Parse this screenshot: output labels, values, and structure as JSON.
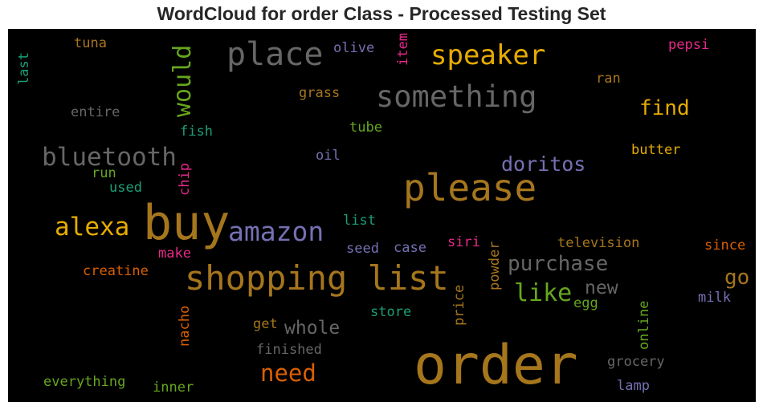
{
  "title": "WordCloud for order Class - Processed Testing Set",
  "words": {
    "order": {
      "text": "order",
      "color": "#a6761d"
    },
    "buy": {
      "text": "buy",
      "color": "#a6761d"
    },
    "please": {
      "text": "please",
      "color": "#a6761d"
    },
    "shopping_list": {
      "text": "shopping list",
      "color": "#a6761d"
    },
    "place": {
      "text": "place",
      "color": "#666666"
    },
    "something": {
      "text": "something",
      "color": "#666666"
    },
    "speaker": {
      "text": "speaker",
      "color": "#e6ab02"
    },
    "bluetooth": {
      "text": "bluetooth",
      "color": "#666666"
    },
    "amazon": {
      "text": "amazon",
      "color": "#7570b3"
    },
    "alexa": {
      "text": "alexa",
      "color": "#e6ab02"
    },
    "need": {
      "text": "need",
      "color": "#d95f02"
    },
    "would": {
      "text": "would",
      "color": "#66a61e"
    },
    "find": {
      "text": "find",
      "color": "#e6ab02"
    },
    "doritos": {
      "text": "doritos",
      "color": "#7570b3"
    },
    "purchase": {
      "text": "purchase",
      "color": "#666666"
    },
    "like": {
      "text": "like",
      "color": "#66a61e"
    },
    "new": {
      "text": "new",
      "color": "#666666"
    },
    "go": {
      "text": "go",
      "color": "#a6761d"
    },
    "whole": {
      "text": "whole",
      "color": "#666666"
    },
    "tuna": {
      "text": "tuna",
      "color": "#a6761d"
    },
    "last": {
      "text": "last",
      "color": "#1b9e77"
    },
    "olive": {
      "text": "olive",
      "color": "#7570b3"
    },
    "item": {
      "text": "item",
      "color": "#e7298a"
    },
    "pepsi": {
      "text": "pepsi",
      "color": "#e7298a"
    },
    "ran": {
      "text": "ran",
      "color": "#a6761d"
    },
    "grass": {
      "text": "grass",
      "color": "#a6761d"
    },
    "entire": {
      "text": "entire",
      "color": "#666666"
    },
    "fish": {
      "text": "fish",
      "color": "#1b9e77"
    },
    "tube": {
      "text": "tube",
      "color": "#66a61e"
    },
    "oil": {
      "text": "oil",
      "color": "#7570b3"
    },
    "butter": {
      "text": "butter",
      "color": "#e6ab02"
    },
    "run": {
      "text": "run",
      "color": "#66a61e"
    },
    "used": {
      "text": "used",
      "color": "#1b9e77"
    },
    "chip": {
      "text": "chip",
      "color": "#e7298a"
    },
    "list": {
      "text": "list",
      "color": "#1b9e77"
    },
    "seed": {
      "text": "seed",
      "color": "#7570b3"
    },
    "case": {
      "text": "case",
      "color": "#7570b3"
    },
    "siri": {
      "text": "siri",
      "color": "#e7298a"
    },
    "powder": {
      "text": "powder",
      "color": "#a6761d"
    },
    "television": {
      "text": "television",
      "color": "#a6761d"
    },
    "since": {
      "text": "since",
      "color": "#d95f02"
    },
    "make": {
      "text": "make",
      "color": "#e7298a"
    },
    "creatine": {
      "text": "creatine",
      "color": "#d95f02"
    },
    "price": {
      "text": "price",
      "color": "#a6761d"
    },
    "egg": {
      "text": "egg",
      "color": "#66a61e"
    },
    "milk": {
      "text": "milk",
      "color": "#7570b3"
    },
    "store": {
      "text": "store",
      "color": "#1b9e77"
    },
    "nacho": {
      "text": "nacho",
      "color": "#d95f02"
    },
    "get": {
      "text": "get",
      "color": "#a6761d"
    },
    "online": {
      "text": "online",
      "color": "#66a61e"
    },
    "finished": {
      "text": "finished",
      "color": "#666666"
    },
    "grocery": {
      "text": "grocery",
      "color": "#666666"
    },
    "everything": {
      "text": "everything",
      "color": "#66a61e"
    },
    "inner": {
      "text": "inner",
      "color": "#66a61e"
    },
    "lamp": {
      "text": "lamp",
      "color": "#7570b3"
    }
  }
}
